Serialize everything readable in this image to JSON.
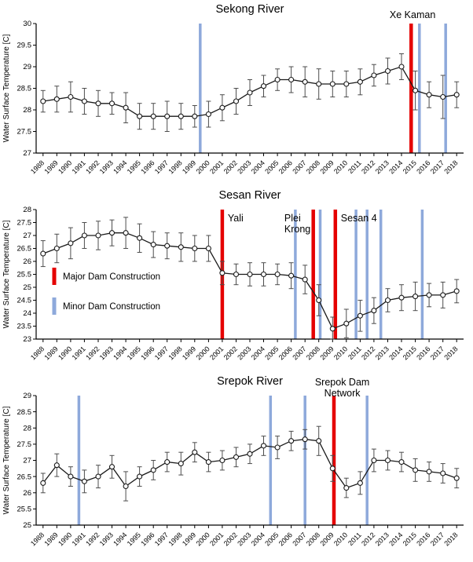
{
  "figure": {
    "background": "#ffffff",
    "colors": {
      "major_dam": "#e50000",
      "minor_dam": "#8ea9db",
      "series_line": "#1a1a1a",
      "marker_fill": "#ffffff",
      "marker_stroke": "#1a1a1a",
      "error_bar": "#4d4d4d",
      "axis": "#000000",
      "annotation": "#e50000"
    },
    "legend": {
      "major_label": "Major Dam Construction",
      "minor_label": "Minor Dam Construction"
    }
  },
  "chart_data": [
    {
      "type": "line",
      "title": "Sekong River",
      "ylabel": "Water Surface Temperature [C]",
      "xlabel": "",
      "ylim": [
        27,
        30
      ],
      "ytick_step": 0.5,
      "x": [
        1988,
        1989,
        1990,
        1991,
        1992,
        1993,
        1994,
        1995,
        1996,
        1997,
        1998,
        1999,
        2000,
        2001,
        2002,
        2003,
        2004,
        2005,
        2006,
        2007,
        2008,
        2009,
        2010,
        2011,
        2012,
        2013,
        2014,
        2015,
        2016,
        2017,
        2018
      ],
      "values": [
        28.2,
        28.25,
        28.3,
        28.2,
        28.15,
        28.15,
        28.05,
        27.85,
        27.85,
        27.85,
        27.85,
        27.85,
        27.9,
        28.05,
        28.2,
        28.4,
        28.55,
        28.7,
        28.7,
        28.65,
        28.6,
        28.6,
        28.6,
        28.65,
        28.8,
        28.9,
        29.0,
        28.45,
        28.35,
        28.3,
        28.35
      ],
      "errors": [
        0.25,
        0.3,
        0.35,
        0.3,
        0.3,
        0.25,
        0.35,
        0.3,
        0.3,
        0.35,
        0.3,
        0.25,
        0.3,
        0.3,
        0.3,
        0.3,
        0.25,
        0.25,
        0.3,
        0.35,
        0.35,
        0.3,
        0.3,
        0.3,
        0.25,
        0.3,
        0.3,
        0.45,
        0.3,
        0.5,
        0.3
      ],
      "major_dams": [
        2014.7
      ],
      "minor_dams": [
        1999.4,
        2015.3,
        2017.2
      ],
      "annotations": [
        {
          "lines": [
            "Xe Kaman"
          ],
          "x": 2014.8,
          "anchor": "middle",
          "dy": -7
        }
      ],
      "show_legend": false
    },
    {
      "type": "line",
      "title": "Sesan River",
      "ylabel": "Water Surface Temperature [C]",
      "xlabel": "",
      "ylim": [
        23,
        28
      ],
      "ytick_step": 0.5,
      "x": [
        1988,
        1989,
        1990,
        1991,
        1992,
        1993,
        1994,
        1995,
        1996,
        1997,
        1998,
        1999,
        2000,
        2001,
        2002,
        2003,
        2004,
        2005,
        2006,
        2007,
        2008,
        2009,
        2010,
        2011,
        2012,
        2013,
        2014,
        2015,
        2016,
        2017,
        2018
      ],
      "values": [
        26.3,
        26.5,
        26.7,
        27.0,
        27.0,
        27.1,
        27.1,
        26.9,
        26.65,
        26.6,
        26.55,
        26.5,
        26.5,
        25.55,
        25.5,
        25.5,
        25.5,
        25.5,
        25.45,
        25.3,
        24.5,
        23.4,
        23.6,
        23.9,
        24.1,
        24.5,
        24.6,
        24.65,
        24.7,
        24.7,
        24.85
      ],
      "errors": [
        0.5,
        0.55,
        0.6,
        0.5,
        0.55,
        0.5,
        0.6,
        0.55,
        0.5,
        0.5,
        0.55,
        0.5,
        0.5,
        0.45,
        0.4,
        0.45,
        0.45,
        0.4,
        0.5,
        0.55,
        0.6,
        0.45,
        0.55,
        0.6,
        0.5,
        0.45,
        0.5,
        0.55,
        0.45,
        0.5,
        0.45
      ],
      "major_dams": [
        2001.0,
        2007.6,
        2009.2
      ],
      "minor_dams": [
        2006.3,
        2008.1,
        2010.7,
        2011.5,
        2012.5,
        2015.5
      ],
      "annotations": [
        {
          "lines": [
            "Yali"
          ],
          "x": 2001.4,
          "anchor": "start",
          "dy": 15
        },
        {
          "lines": [
            "Plei",
            "Krong"
          ],
          "x": 2005.5,
          "anchor": "start",
          "dy": 15
        },
        {
          "lines": [
            "Sesan 4"
          ],
          "x": 2009.6,
          "anchor": "start",
          "dy": 15
        }
      ],
      "show_legend": true
    },
    {
      "type": "line",
      "title": "Srepok River",
      "ylabel": "Water Surface Temperature [C]",
      "xlabel": "",
      "ylim": [
        25,
        29
      ],
      "ytick_step": 0.5,
      "x": [
        1988,
        1989,
        1990,
        1991,
        1992,
        1993,
        1994,
        1995,
        1996,
        1997,
        1998,
        1999,
        2000,
        2001,
        2002,
        2003,
        2004,
        2005,
        2006,
        2007,
        2008,
        2009,
        2010,
        2011,
        2012,
        2013,
        2014,
        2015,
        2016,
        2017,
        2018
      ],
      "values": [
        26.3,
        26.85,
        26.5,
        26.35,
        26.5,
        26.8,
        26.2,
        26.5,
        26.7,
        26.95,
        26.9,
        27.25,
        26.95,
        27.0,
        27.1,
        27.2,
        27.45,
        27.4,
        27.6,
        27.65,
        27.6,
        26.75,
        26.15,
        26.3,
        27.0,
        27.0,
        26.95,
        26.7,
        26.65,
        26.6,
        26.45
      ],
      "errors": [
        0.3,
        0.35,
        0.3,
        0.35,
        0.35,
        0.35,
        0.45,
        0.3,
        0.3,
        0.3,
        0.35,
        0.3,
        0.3,
        0.3,
        0.3,
        0.3,
        0.3,
        0.35,
        0.3,
        0.3,
        0.45,
        0.4,
        0.3,
        0.35,
        0.35,
        0.3,
        0.3,
        0.35,
        0.3,
        0.3,
        0.3
      ],
      "major_dams": [
        2009.1
      ],
      "minor_dams": [
        1990.6,
        2004.5,
        2007.0,
        2011.5
      ],
      "annotations": [
        {
          "lines": [
            "Srepok Dam",
            "Network"
          ],
          "x": 2009.7,
          "anchor": "middle",
          "dy": -13
        }
      ],
      "show_legend": false
    }
  ]
}
